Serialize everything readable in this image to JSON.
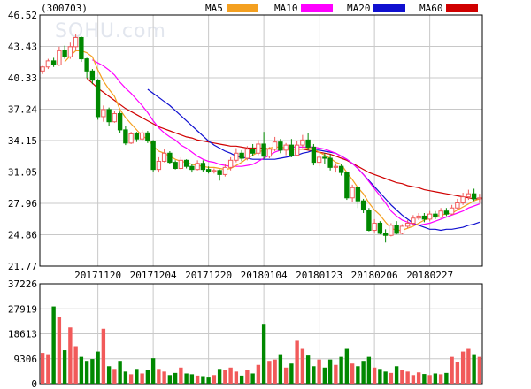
{
  "chart_data": [
    {
      "type": "candlestick",
      "title": "(300703)",
      "watermark": "SOHU.com",
      "ylim": [
        21.77,
        46.52
      ],
      "yticks": [
        "46.52",
        "43.43",
        "40.33",
        "37.24",
        "34.15",
        "31.05",
        "27.96",
        "24.86",
        "21.77"
      ],
      "xtick_labels": [
        "20171120",
        "20171204",
        "20171220",
        "20180104",
        "20180123",
        "20180206",
        "20180227"
      ],
      "xtick_index": [
        10,
        20,
        30,
        40,
        50,
        60,
        70
      ],
      "grid": true,
      "colors": {
        "up": "#f15a5a",
        "down": "#008800",
        "grid": "#c8c8c8",
        "axis": "#000000",
        "ma5": "#f4a020",
        "ma10": "#ff00ff",
        "ma20": "#1010d0",
        "ma60": "#d00000"
      },
      "legend": [
        {
          "name": "MA5",
          "color": "#f4a020"
        },
        {
          "name": "MA10",
          "color": "#ff00ff"
        },
        {
          "name": "MA20",
          "color": "#1010d0"
        },
        {
          "name": "MA60",
          "color": "#d00000"
        }
      ],
      "candles": [
        [
          41.0,
          41.4,
          40.7,
          41.5
        ],
        [
          41.4,
          42.0,
          41.2,
          42.2
        ],
        [
          42.0,
          41.6,
          41.4,
          42.3
        ],
        [
          41.6,
          43.0,
          41.5,
          43.4
        ],
        [
          43.0,
          42.4,
          42.2,
          43.5
        ],
        [
          42.4,
          43.4,
          42.2,
          43.8
        ],
        [
          43.4,
          44.3,
          43.0,
          44.6
        ],
        [
          44.3,
          42.2,
          41.9,
          44.4
        ],
        [
          42.2,
          41.0,
          40.3,
          42.3
        ],
        [
          41.0,
          40.1,
          39.7,
          41.2
        ],
        [
          40.1,
          36.5,
          36.2,
          40.2
        ],
        [
          36.5,
          37.2,
          36.0,
          37.6
        ],
        [
          37.2,
          36.0,
          35.6,
          37.4
        ],
        [
          36.0,
          36.8,
          35.9,
          37.1
        ],
        [
          36.8,
          35.2,
          34.9,
          37.0
        ],
        [
          35.2,
          33.9,
          33.7,
          35.6
        ],
        [
          33.9,
          34.8,
          33.8,
          35.0
        ],
        [
          34.8,
          34.3,
          34.0,
          35.0
        ],
        [
          34.3,
          34.9,
          34.1,
          35.2
        ],
        [
          34.9,
          34.1,
          33.9,
          35.1
        ],
        [
          34.1,
          31.3,
          31.1,
          34.2
        ],
        [
          31.3,
          32.1,
          31.0,
          32.5
        ],
        [
          32.1,
          32.9,
          32.0,
          33.3
        ],
        [
          32.9,
          32.0,
          31.8,
          33.1
        ],
        [
          32.0,
          31.4,
          31.3,
          32.2
        ],
        [
          31.4,
          32.2,
          31.3,
          32.5
        ],
        [
          32.2,
          31.6,
          31.4,
          32.3
        ],
        [
          31.6,
          31.3,
          31.0,
          31.8
        ],
        [
          31.3,
          31.9,
          31.2,
          32.2
        ],
        [
          31.9,
          31.3,
          31.1,
          32.2
        ],
        [
          31.3,
          31.1,
          30.9,
          31.6
        ],
        [
          31.1,
          31.2,
          30.9,
          31.4
        ],
        [
          31.2,
          30.8,
          30.2,
          31.3
        ],
        [
          30.8,
          31.5,
          30.6,
          31.8
        ],
        [
          31.5,
          32.2,
          31.2,
          32.5
        ],
        [
          32.2,
          32.9,
          32.0,
          33.4
        ],
        [
          32.9,
          32.4,
          32.1,
          33.2
        ],
        [
          32.4,
          33.3,
          32.2,
          33.6
        ],
        [
          33.3,
          32.9,
          32.6,
          33.8
        ],
        [
          32.9,
          33.8,
          32.7,
          34.2
        ],
        [
          33.8,
          32.6,
          32.3,
          35.0
        ],
        [
          32.6,
          33.3,
          32.4,
          33.5
        ],
        [
          33.3,
          34.0,
          33.1,
          34.5
        ],
        [
          34.0,
          33.2,
          32.9,
          34.3
        ],
        [
          33.2,
          33.7,
          32.7,
          33.9
        ],
        [
          33.7,
          32.7,
          32.5,
          34.3
        ],
        [
          32.7,
          33.7,
          32.6,
          34.1
        ],
        [
          33.7,
          34.2,
          33.4,
          34.7
        ],
        [
          34.2,
          33.5,
          33.2,
          34.9
        ],
        [
          33.5,
          32.0,
          31.7,
          33.8
        ],
        [
          32.0,
          32.5,
          31.6,
          32.8
        ],
        [
          32.5,
          32.4,
          31.8,
          32.9
        ],
        [
          32.4,
          31.5,
          31.2,
          32.8
        ],
        [
          31.5,
          31.6,
          31.0,
          31.9
        ],
        [
          31.6,
          31.0,
          30.7,
          31.8
        ],
        [
          31.0,
          28.5,
          28.3,
          31.1
        ],
        [
          28.5,
          29.5,
          28.1,
          29.8
        ],
        [
          29.5,
          28.2,
          27.5,
          29.6
        ],
        [
          28.2,
          27.3,
          27.0,
          28.4
        ],
        [
          27.3,
          25.3,
          25.2,
          27.5
        ],
        [
          25.3,
          26.0,
          25.1,
          26.4
        ],
        [
          26.0,
          25.0,
          24.9,
          26.2
        ],
        [
          25.0,
          24.8,
          24.1,
          25.4
        ],
        [
          24.8,
          25.8,
          24.7,
          26.0
        ],
        [
          25.8,
          25.0,
          24.9,
          26.2
        ],
        [
          25.0,
          25.7,
          24.9,
          25.9
        ],
        [
          25.7,
          26.0,
          25.5,
          26.3
        ],
        [
          26.0,
          26.5,
          25.8,
          26.8
        ],
        [
          26.5,
          26.7,
          26.3,
          27.0
        ],
        [
          26.7,
          26.4,
          26.1,
          27.0
        ],
        [
          26.4,
          26.9,
          26.2,
          27.2
        ],
        [
          26.9,
          26.6,
          26.4,
          27.2
        ],
        [
          26.6,
          27.2,
          26.5,
          27.5
        ],
        [
          27.2,
          26.9,
          26.7,
          27.5
        ],
        [
          26.9,
          27.5,
          26.8,
          27.8
        ],
        [
          27.5,
          28.0,
          27.3,
          28.4
        ],
        [
          28.0,
          28.6,
          27.8,
          29.0
        ],
        [
          28.6,
          28.9,
          28.3,
          29.3
        ],
        [
          28.9,
          28.4,
          28.2,
          29.4
        ],
        [
          28.4,
          28.5,
          28.0,
          28.9
        ]
      ],
      "ma5": [
        null,
        null,
        null,
        null,
        41.9,
        42.5,
        43.0,
        43.0,
        42.8,
        42.4,
        41.1,
        40.0,
        39.2,
        38.5,
        37.2,
        36.4,
        35.8,
        35.2,
        34.6,
        34.3,
        33.6,
        33.1,
        32.9,
        32.6,
        32.3,
        32.1,
        32.0,
        31.8,
        31.7,
        31.6,
        31.5,
        31.5,
        31.4,
        31.3,
        31.4,
        31.7,
        32.0,
        32.4,
        32.7,
        33.0,
        33.2,
        33.4,
        33.5,
        33.5,
        33.4,
        33.3,
        33.3,
        33.3,
        33.4,
        33.3,
        33.0,
        32.7,
        32.4,
        32.0,
        31.8,
        31.0,
        30.3,
        29.5,
        28.9,
        28.0,
        27.3,
        26.8,
        26.1,
        25.5,
        25.3,
        25.3,
        25.5,
        25.7,
        26.0,
        26.3,
        26.5,
        26.7,
        26.8,
        26.9,
        27.0,
        27.3,
        27.6,
        27.9,
        28.2,
        28.4
      ],
      "ma10": [
        null,
        null,
        null,
        null,
        null,
        null,
        null,
        null,
        null,
        42.1,
        41.8,
        41.5,
        41.1,
        40.6,
        39.9,
        39.3,
        38.8,
        38.2,
        37.6,
        36.9,
        36.1,
        35.4,
        34.9,
        34.5,
        34.2,
        33.7,
        33.4,
        33.0,
        32.6,
        32.3,
        32.1,
        32.0,
        31.8,
        31.7,
        31.6,
        31.6,
        31.6,
        31.7,
        31.8,
        32.1,
        32.4,
        32.7,
        33.0,
        33.2,
        33.4,
        33.5,
        33.5,
        33.5,
        33.5,
        33.5,
        33.4,
        33.3,
        33.1,
        32.9,
        32.6,
        32.3,
        31.9,
        31.4,
        30.8,
        30.1,
        29.4,
        28.7,
        28.0,
        27.2,
        26.7,
        26.3,
        26.1,
        25.9,
        25.8,
        25.9,
        26.0,
        26.2,
        26.4,
        26.6,
        26.8,
        27.0,
        27.2,
        27.5,
        27.7,
        27.9
      ],
      "ma20": [
        null,
        null,
        null,
        null,
        null,
        null,
        null,
        null,
        null,
        null,
        null,
        null,
        null,
        null,
        null,
        null,
        null,
        null,
        null,
        39.2,
        38.8,
        38.4,
        38.0,
        37.6,
        37.1,
        36.6,
        36.1,
        35.6,
        35.1,
        34.6,
        34.1,
        33.7,
        33.4,
        33.1,
        32.9,
        32.6,
        32.5,
        32.4,
        32.3,
        32.3,
        32.3,
        32.3,
        32.3,
        32.4,
        32.5,
        32.6,
        32.7,
        32.9,
        33.0,
        33.2,
        33.2,
        33.1,
        33.0,
        32.9,
        32.6,
        32.3,
        31.9,
        31.4,
        30.8,
        30.2,
        29.6,
        29.0,
        28.4,
        27.8,
        27.3,
        26.8,
        26.4,
        26.0,
        25.8,
        25.6,
        25.4,
        25.4,
        25.3,
        25.4,
        25.4,
        25.5,
        25.6,
        25.8,
        25.9,
        26.1
      ],
      "ma60": [
        null,
        null,
        null,
        null,
        null,
        null,
        null,
        null,
        40.3,
        39.8,
        39.3,
        38.9,
        38.5,
        38.1,
        37.7,
        37.3,
        37.0,
        36.7,
        36.4,
        36.1,
        35.8,
        35.5,
        35.3,
        35.1,
        34.9,
        34.7,
        34.5,
        34.4,
        34.2,
        34.1,
        34.0,
        33.9,
        33.8,
        33.7,
        33.6,
        33.6,
        33.5,
        33.4,
        33.4,
        33.4,
        33.4,
        33.3,
        33.3,
        33.3,
        33.3,
        33.3,
        33.3,
        33.3,
        33.2,
        33.1,
        33.0,
        32.9,
        32.8,
        32.6,
        32.4,
        32.2,
        31.9,
        31.6,
        31.3,
        31.0,
        30.8,
        30.6,
        30.4,
        30.2,
        30.0,
        29.9,
        29.7,
        29.6,
        29.5,
        29.3,
        29.2,
        29.1,
        29.0,
        28.9,
        28.8,
        28.7,
        28.6,
        28.5,
        28.4,
        28.4
      ]
    },
    {
      "type": "bar",
      "ylim": [
        0,
        37226
      ],
      "yticks": [
        "37226",
        "27919",
        "18613",
        "9306",
        "0"
      ],
      "grid": true,
      "values": [
        11500,
        11000,
        28800,
        25000,
        12500,
        21000,
        14000,
        10000,
        8500,
        9200,
        12000,
        20500,
        6500,
        5500,
        8500,
        4500,
        3500,
        5500,
        3800,
        5000,
        9500,
        5500,
        4500,
        3200,
        4000,
        6000,
        3800,
        3500,
        3000,
        2800,
        2600,
        3200,
        5500,
        5000,
        6000,
        4500,
        3000,
        5000,
        3800,
        7000,
        22000,
        8500,
        9000,
        11000,
        6000,
        7500,
        16000,
        13000,
        10500,
        6500,
        9000,
        6000,
        9000,
        7000,
        10000,
        13000,
        7500,
        6500,
        8500,
        10000,
        6000,
        5500,
        4500,
        4000,
        6500,
        5000,
        4500,
        3200,
        4200,
        3600,
        3200,
        3800,
        3500,
        4000,
        10000,
        8000,
        12000,
        13000,
        11000,
        10000
      ]
    }
  ]
}
